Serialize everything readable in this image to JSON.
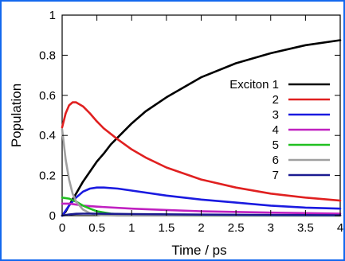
{
  "chart_data": {
    "type": "line",
    "title": "",
    "xlabel": "Time / ps",
    "ylabel": "Population",
    "xlim": [
      0,
      4
    ],
    "ylim": [
      0,
      1
    ],
    "grid": false,
    "legend_position": "right",
    "x_ticks": [
      "0",
      "0.5",
      "1",
      "1.5",
      "2",
      "2.5",
      "3",
      "3.5",
      "4"
    ],
    "y_ticks": [
      "0",
      "0.2",
      "0.4",
      "0.6",
      "0.8",
      "1"
    ],
    "legend_labels": [
      "Exciton 1",
      "2",
      "3",
      "4",
      "5",
      "6",
      "7"
    ],
    "series": [
      {
        "name": "Exciton 1",
        "color": "#000000",
        "x": [
          0,
          0.05,
          0.1,
          0.15,
          0.2,
          0.3,
          0.4,
          0.5,
          0.6,
          0.7,
          0.8,
          1.0,
          1.2,
          1.5,
          2.0,
          2.5,
          3.0,
          3.5,
          4.0
        ],
        "values": [
          0.0,
          0.02,
          0.05,
          0.08,
          0.11,
          0.17,
          0.22,
          0.27,
          0.31,
          0.355,
          0.39,
          0.46,
          0.52,
          0.59,
          0.69,
          0.76,
          0.81,
          0.85,
          0.875
        ]
      },
      {
        "name": "2",
        "color": "#e02020",
        "x": [
          0,
          0.05,
          0.1,
          0.15,
          0.2,
          0.3,
          0.4,
          0.5,
          0.6,
          0.8,
          1.0,
          1.2,
          1.5,
          2.0,
          2.5,
          3.0,
          3.5,
          4.0
        ],
        "values": [
          0.44,
          0.51,
          0.55,
          0.565,
          0.565,
          0.545,
          0.51,
          0.47,
          0.435,
          0.38,
          0.33,
          0.29,
          0.24,
          0.18,
          0.14,
          0.11,
          0.09,
          0.075
        ]
      },
      {
        "name": "3",
        "color": "#1a1ae0",
        "x": [
          0,
          0.1,
          0.2,
          0.3,
          0.4,
          0.5,
          0.6,
          0.8,
          1.0,
          1.5,
          2.0,
          2.5,
          3.0,
          3.5,
          4.0
        ],
        "values": [
          0.0,
          0.05,
          0.09,
          0.12,
          0.135,
          0.14,
          0.14,
          0.135,
          0.125,
          0.1,
          0.08,
          0.065,
          0.05,
          0.04,
          0.035
        ]
      },
      {
        "name": "4",
        "color": "#c020c0",
        "x": [
          0,
          0.1,
          0.2,
          0.3,
          0.5,
          1.0,
          1.5,
          2.0,
          3.0,
          4.0
        ],
        "values": [
          0.06,
          0.06,
          0.055,
          0.05,
          0.045,
          0.035,
          0.028,
          0.022,
          0.015,
          0.01
        ]
      },
      {
        "name": "5",
        "color": "#20c020",
        "x": [
          0,
          0.1,
          0.2,
          0.3,
          0.4,
          0.5,
          0.7,
          1.0,
          1.5,
          2.0,
          3.0,
          4.0
        ],
        "values": [
          0.09,
          0.085,
          0.07,
          0.05,
          0.035,
          0.022,
          0.01,
          0.004,
          0.001,
          0.0,
          0.0,
          0.0
        ]
      },
      {
        "name": "6",
        "color": "#a0a0a0",
        "x": [
          0,
          0.05,
          0.1,
          0.15,
          0.2,
          0.3,
          0.4,
          0.5,
          0.6,
          0.8,
          1.0,
          1.5,
          2.0,
          3.0,
          4.0
        ],
        "values": [
          0.43,
          0.28,
          0.18,
          0.11,
          0.07,
          0.03,
          0.012,
          0.005,
          0.002,
          0.0,
          0.0,
          0.0,
          0.0,
          0.0,
          0.0
        ]
      },
      {
        "name": "7",
        "color": "#1a1a90",
        "x": [
          0,
          0.1,
          0.2,
          0.3,
          0.5,
          1.0,
          2.0,
          3.0,
          4.0
        ],
        "values": [
          0.0,
          0.006,
          0.009,
          0.01,
          0.01,
          0.008,
          0.005,
          0.003,
          0.002
        ]
      }
    ]
  }
}
